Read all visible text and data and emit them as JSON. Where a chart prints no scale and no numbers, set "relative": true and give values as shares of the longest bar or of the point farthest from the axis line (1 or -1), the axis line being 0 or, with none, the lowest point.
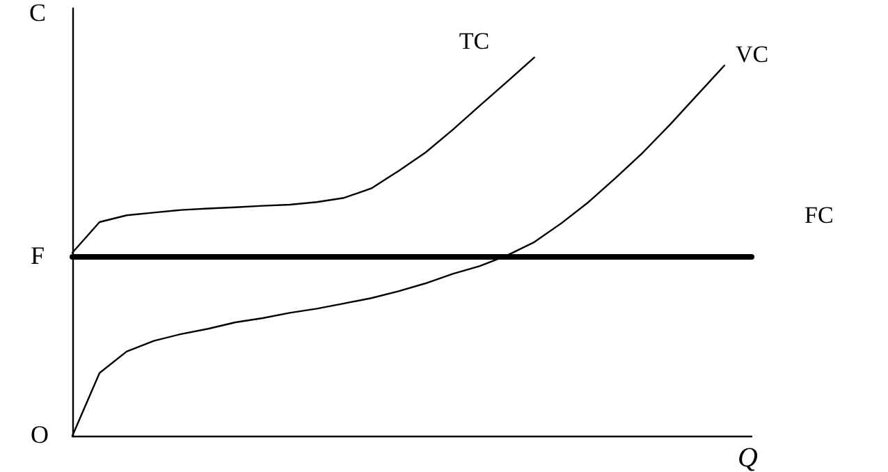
{
  "chart_data": {
    "type": "line",
    "relative": true,
    "xlabel": "Q",
    "ylabel": "C",
    "categories": [
      null,
      null,
      null,
      null,
      null,
      null,
      null,
      null,
      null,
      null,
      null,
      null,
      null,
      null,
      null,
      null,
      null,
      null,
      null,
      null,
      null,
      null,
      null,
      null,
      null,
      null
    ],
    "series": [
      {
        "name": "TC",
        "color": "#000000",
        "values": [
          0.484,
          0.565,
          0.583,
          0.59,
          0.597,
          0.601,
          0.604,
          0.608,
          0.611,
          0.618,
          0.629,
          0.654,
          0.7,
          0.749,
          0.809,
          0.873,
          0.936,
          1,
          null,
          null,
          null,
          null,
          null,
          null,
          null,
          null
        ]
      },
      {
        "name": "VC",
        "color": "#000000",
        "values": [
          0,
          0.166,
          0.223,
          0.251,
          0.269,
          0.283,
          0.3,
          0.311,
          0.325,
          0.336,
          0.35,
          0.364,
          0.382,
          0.403,
          0.428,
          0.449,
          0.477,
          0.512,
          0.562,
          0.618,
          0.682,
          0.749,
          0.823,
          0.901,
          0.979,
          null
        ]
      },
      {
        "name": "FC",
        "color": "#000000",
        "values": [
          0.473,
          0.473,
          0.473,
          0.473,
          0.473,
          0.473,
          0.473,
          0.473,
          0.473,
          0.473,
          0.473,
          0.473,
          0.473,
          0.473,
          0.473,
          0.473,
          0.473,
          0.473,
          0.473,
          0.473,
          0.473,
          0.473,
          0.473,
          0.473,
          0.473,
          0.473
        ]
      }
    ],
    "annotations": [
      "F",
      "O"
    ],
    "grid": false,
    "legend": false,
    "marker": "none",
    "line_style": "solid"
  }
}
